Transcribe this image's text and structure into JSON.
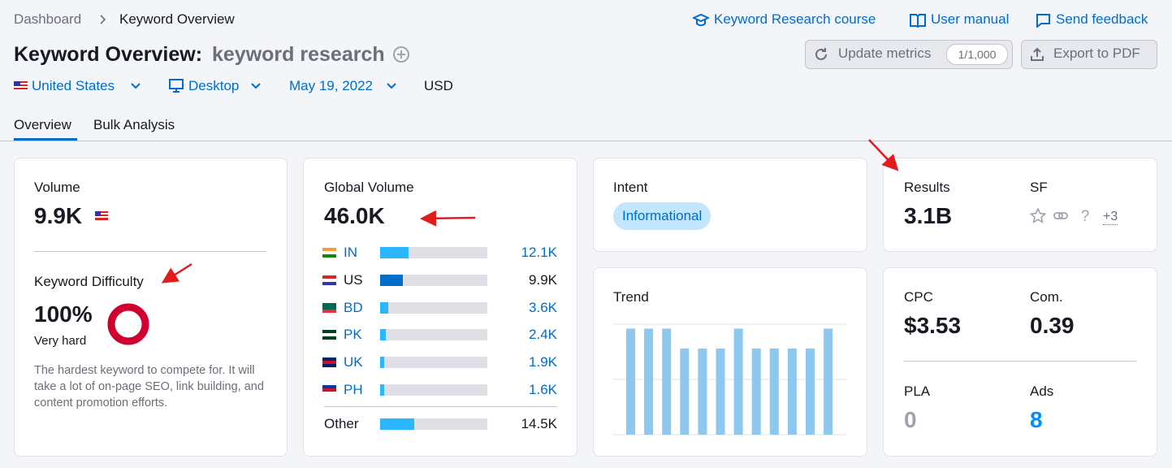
{
  "breadcrumb": [
    "Dashboard",
    "Keyword Overview"
  ],
  "header_links": [
    "Keyword Research course",
    "User manual",
    "Send feedback"
  ],
  "title": "Keyword Overview:",
  "keyword": "keyword research",
  "buttons": {
    "update": "Update metrics",
    "update_quota": "1/1,000",
    "export": "Export to PDF"
  },
  "filters": [
    "United States",
    "Desktop",
    "May 19, 2022",
    "USD"
  ],
  "tabs": [
    "Overview",
    "Bulk Analysis"
  ],
  "volume": {
    "label": "Volume",
    "value": "9.9K"
  },
  "difficulty": {
    "label": "Keyword Difficulty",
    "value": 100,
    "value_label": "100%",
    "level": "Very hard",
    "description": "The hardest keyword to compete for. It will take a lot of on-page SEO, link building, and content promotion efforts."
  },
  "global_volume": {
    "label": "Global Volume",
    "value": 46000,
    "value_label": "46.0K",
    "countries": [
      {
        "code": "IN",
        "value": 12100,
        "value_label": "12.1K"
      },
      {
        "code": "US",
        "value": 9900,
        "value_label": "9.9K"
      },
      {
        "code": "BD",
        "value": 3600,
        "value_label": "3.6K"
      },
      {
        "code": "PK",
        "value": 2400,
        "value_label": "2.4K"
      },
      {
        "code": "UK",
        "value": 1900,
        "value_label": "1.9K"
      },
      {
        "code": "PH",
        "value": 1600,
        "value_label": "1.6K"
      }
    ],
    "other": {
      "label": "Other",
      "value": 14500,
      "value_label": "14.5K"
    }
  },
  "intent": {
    "label": "Intent",
    "value": "Informational"
  },
  "results": {
    "label": "Results",
    "value": "3.1B"
  },
  "sf": {
    "label": "SF",
    "more": "+3"
  },
  "trend": {
    "label": "Trend",
    "values": [
      0.96,
      0.96,
      0.96,
      0.78,
      0.78,
      0.78,
      0.96,
      0.78,
      0.78,
      0.78,
      0.78,
      0.96
    ],
    "ylim": [
      0,
      1
    ],
    "yticks": [
      0,
      0.5,
      1
    ]
  },
  "cpc": {
    "label": "CPC",
    "value": "$3.53"
  },
  "com": {
    "label": "Com.",
    "value": "0.39"
  },
  "pla": {
    "label": "PLA",
    "value": "0"
  },
  "ads": {
    "label": "Ads",
    "value": "8"
  }
}
